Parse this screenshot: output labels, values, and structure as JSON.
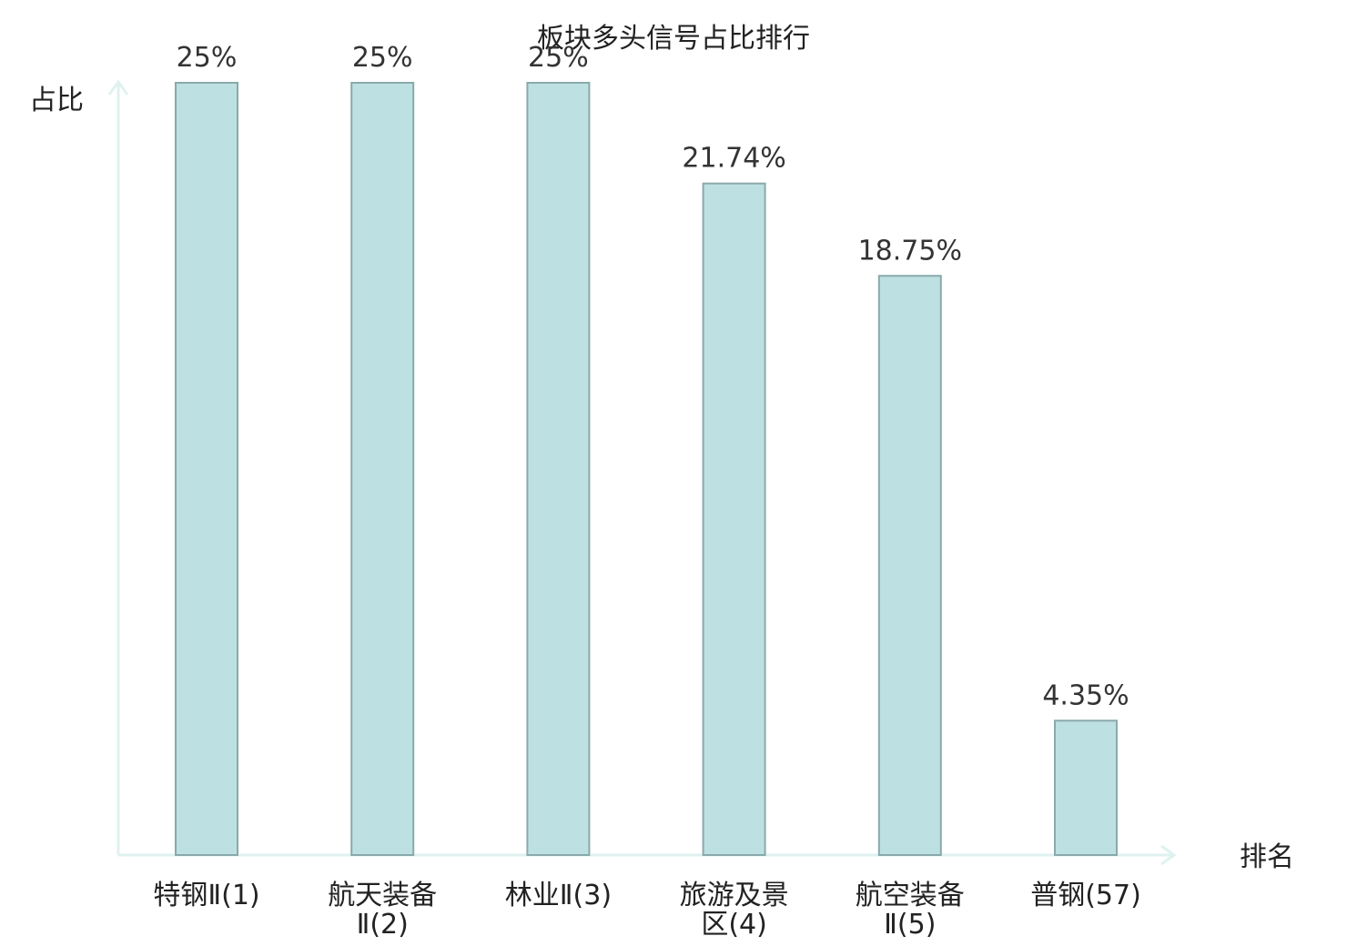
{
  "chart_data": {
    "type": "bar",
    "title": "板块多头信号占比排行",
    "xlabel": "排名",
    "ylabel": "占比",
    "categories": [
      [
        "特钢Ⅱ(1)"
      ],
      [
        "航天装备",
        "Ⅱ(2)"
      ],
      [
        "林业Ⅱ(3)"
      ],
      [
        "旅游及景",
        "区(4)"
      ],
      [
        "航空装备",
        "Ⅱ(5)"
      ],
      [
        "普钢(57)"
      ]
    ],
    "values": [
      25,
      25,
      25,
      21.74,
      18.75,
      4.35
    ],
    "value_labels": [
      "25%",
      "25%",
      "25%",
      "21.74%",
      "18.75%",
      "4.35%"
    ],
    "highlight_index": 5,
    "ylim": [
      0,
      25
    ],
    "grid": false,
    "legend": "none",
    "colors": {
      "bar_fill": "#bde0e3",
      "bar_stroke": "#8aa9ab",
      "axis": "#dff2f0",
      "highlight_text": "#e31a1c",
      "text": "#222222"
    }
  }
}
